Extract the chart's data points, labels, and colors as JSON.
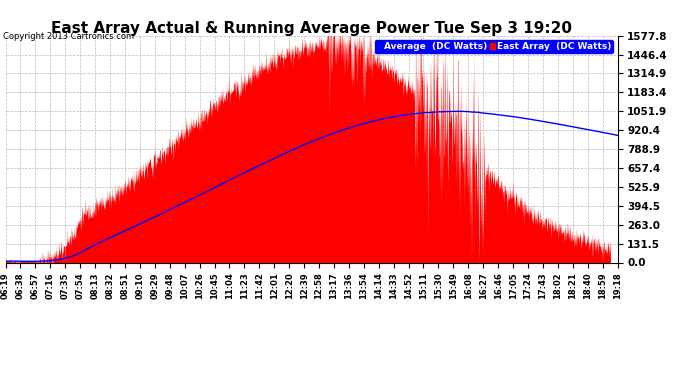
{
  "title": "East Array Actual & Running Average Power Tue Sep 3 19:20",
  "copyright": "Copyright 2013 Cartronics.com",
  "ymax": 1577.8,
  "ymin": 0.0,
  "yticks": [
    0.0,
    131.5,
    263.0,
    394.5,
    525.9,
    657.4,
    788.9,
    920.4,
    1051.9,
    1183.4,
    1314.9,
    1446.4,
    1577.8
  ],
  "bg_color": "#ffffff",
  "plot_bg_color": "#ffffff",
  "grid_color": "#bbbbbb",
  "fill_color": "#ff0000",
  "line_color": "#0000ff",
  "title_fontsize": 11,
  "legend_avg_label": "Average  (DC Watts)",
  "legend_east_label": "East Array  (DC Watts)",
  "xtick_labels": [
    "06:19",
    "06:38",
    "06:57",
    "07:16",
    "07:35",
    "07:54",
    "08:13",
    "08:32",
    "08:51",
    "09:10",
    "09:29",
    "09:48",
    "10:07",
    "10:26",
    "10:45",
    "11:04",
    "11:23",
    "11:42",
    "12:01",
    "12:20",
    "12:39",
    "12:58",
    "13:17",
    "13:36",
    "13:54",
    "14:14",
    "14:33",
    "14:52",
    "15:11",
    "15:30",
    "15:49",
    "16:08",
    "16:27",
    "16:46",
    "17:05",
    "17:24",
    "17:43",
    "18:02",
    "18:21",
    "18:40",
    "18:59",
    "19:18"
  ]
}
